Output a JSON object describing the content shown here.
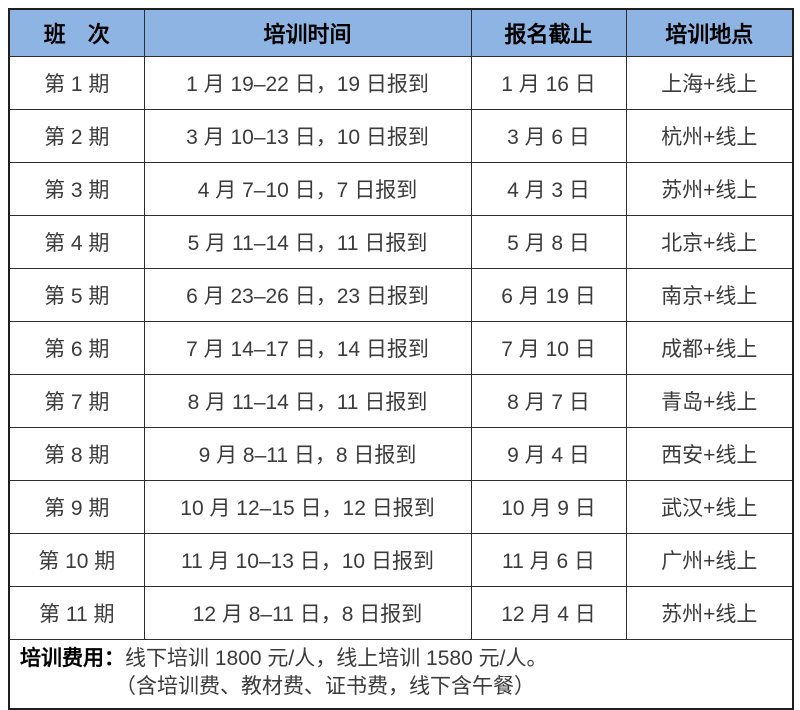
{
  "table": {
    "header": {
      "session": "班　次",
      "time": "培训时间",
      "deadline": "报名截止",
      "location": "培训地点"
    },
    "rows": [
      {
        "session": "第 1 期",
        "time": "1 月 19–22 日，19 日报到",
        "deadline": "1 月 16 日",
        "location": "上海+线上"
      },
      {
        "session": "第 2 期",
        "time": "3 月 10–13 日，10 日报到",
        "deadline": "3 月 6 日",
        "location": "杭州+线上"
      },
      {
        "session": "第 3 期",
        "time": "4 月 7–10 日，7 日报到",
        "deadline": "4 月 3 日",
        "location": "苏州+线上"
      },
      {
        "session": "第 4 期",
        "time": "5 月 11–14 日，11 日报到",
        "deadline": "5 月 8 日",
        "location": "北京+线上"
      },
      {
        "session": "第 5 期",
        "time": "6 月 23–26 日，23 日报到",
        "deadline": "6 月 19 日",
        "location": "南京+线上"
      },
      {
        "session": "第 6 期",
        "time": "7 月 14–17 日，14 日报到",
        "deadline": "7 月 10 日",
        "location": "成都+线上"
      },
      {
        "session": "第 7 期",
        "time": "8 月 11–14 日，11 日报到",
        "deadline": "8 月 7 日",
        "location": "青岛+线上"
      },
      {
        "session": "第 8 期",
        "time": "9 月 8–11 日，8 日报到",
        "deadline": "9 月 4 日",
        "location": "西安+线上"
      },
      {
        "session": "第 9 期",
        "time": "10 月 12–15 日，12 日报到",
        "deadline": "10 月 9 日",
        "location": "武汉+线上"
      },
      {
        "session": "第 10 期",
        "time": "11 月 10–13 日，10 日报到",
        "deadline": "11 月 6 日",
        "location": "广州+线上"
      },
      {
        "session": "第 11 期",
        "time": "12 月 8–11 日，8 日报到",
        "deadline": "12 月 4 日",
        "location": "苏州+线上"
      }
    ],
    "footer": {
      "fee_label": "培训费用：",
      "fee_text": "线下培训 1800 元/人，线上培训 1580 元/人。",
      "fee_note": "（含培训费、教材费、证书费，线下含午餐）"
    }
  },
  "colors": {
    "header_bg": "#8EB4E3",
    "outer_border": "#1F1F1F",
    "inner_border": "#2E2E2E",
    "header_text": "#000000",
    "body_text": "#3B3B3B"
  }
}
